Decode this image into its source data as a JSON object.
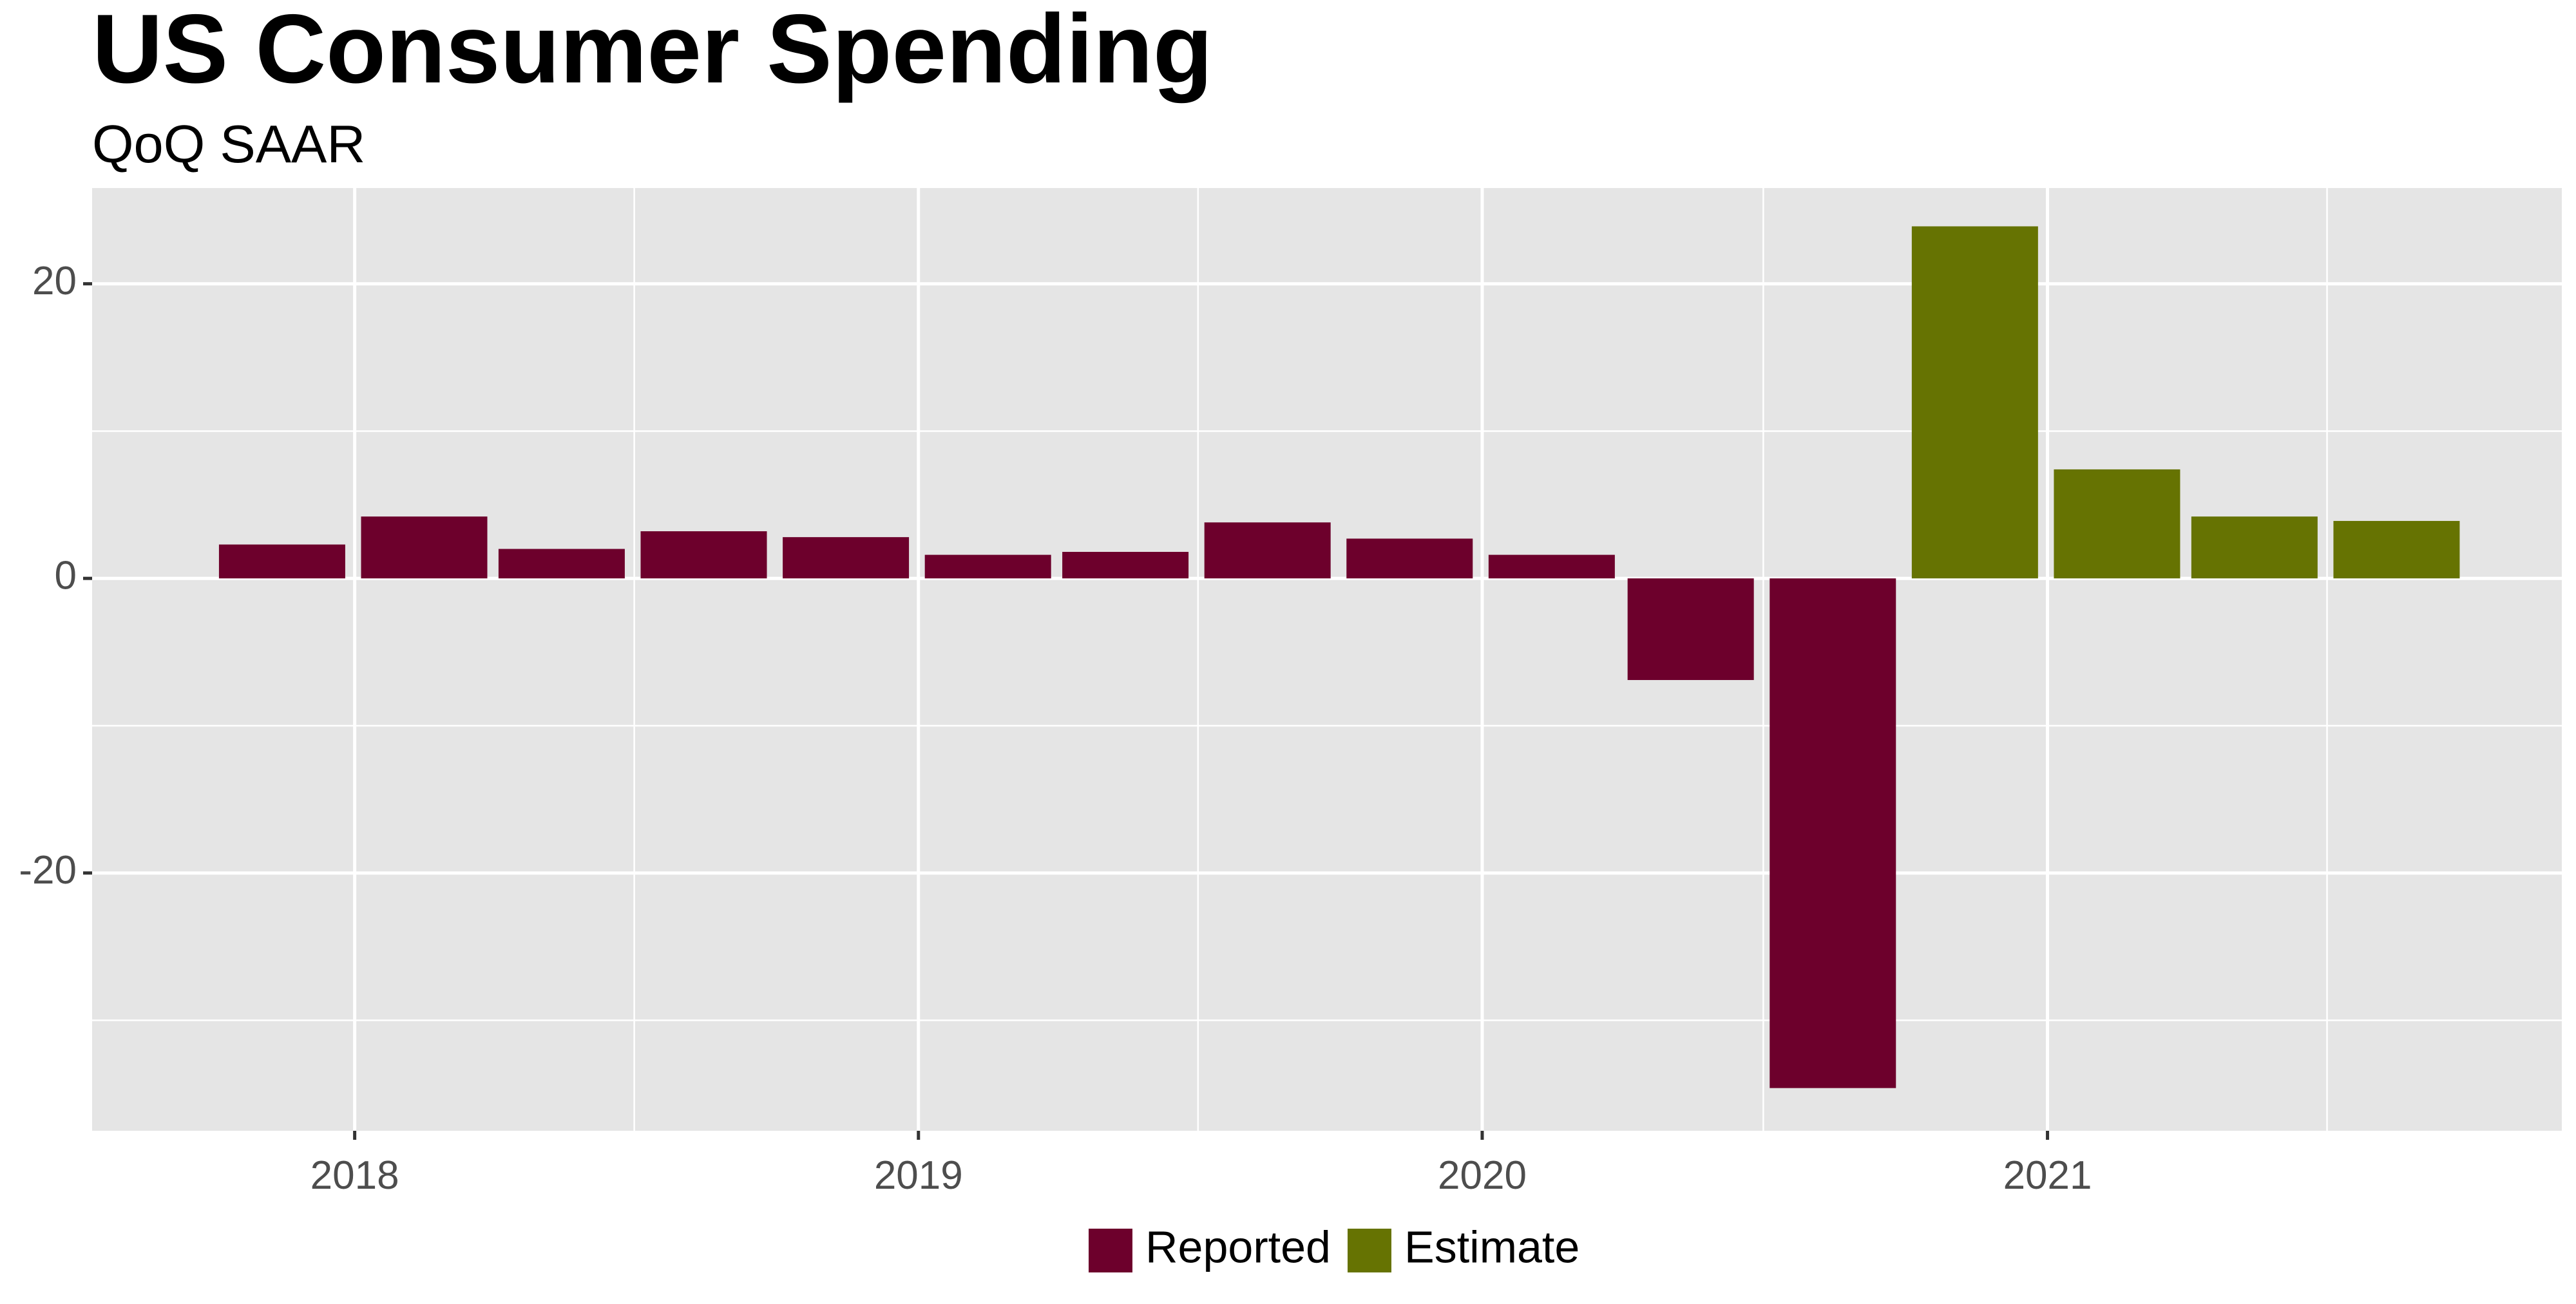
{
  "chart_data": {
    "type": "bar",
    "title": "US Consumer Spending",
    "subtitle": "QoQ SAAR",
    "xlabel": "",
    "ylabel": "",
    "x_domain": [
      "2017-07-15",
      "2021-11-30"
    ],
    "ylim": [
      -37.5,
      26.5
    ],
    "y_grid_major": [
      -20,
      0,
      20
    ],
    "y_grid_minor": [
      -30,
      -10,
      10
    ],
    "x_ticks": [
      "2018",
      "2019",
      "2020",
      "2021"
    ],
    "x_tick_dates": [
      "2018-01-01",
      "2019-01-01",
      "2020-01-01",
      "2021-01-01"
    ],
    "x_minor_dates": [
      "2017-07-01",
      "2018-07-01",
      "2019-07-01",
      "2020-07-01",
      "2021-07-01"
    ],
    "y_ticks": [
      "-20",
      "0",
      "20"
    ],
    "grid": true,
    "legend_position": "bottom",
    "series": [
      {
        "name": "Reported",
        "color": "#6d002c",
        "points": [
          {
            "x": "2017-11-15",
            "y": 2.3
          },
          {
            "x": "2018-02-15",
            "y": 4.2
          },
          {
            "x": "2018-05-15",
            "y": 2.0
          },
          {
            "x": "2018-08-15",
            "y": 3.2
          },
          {
            "x": "2018-11-15",
            "y": 2.8
          },
          {
            "x": "2019-02-15",
            "y": 1.6
          },
          {
            "x": "2019-05-15",
            "y": 1.8
          },
          {
            "x": "2019-08-15",
            "y": 3.8
          },
          {
            "x": "2019-11-15",
            "y": 2.7
          },
          {
            "x": "2020-02-15",
            "y": 1.6
          },
          {
            "x": "2020-05-15",
            "y": -6.9
          },
          {
            "x": "2020-08-15",
            "y": -34.6
          }
        ]
      },
      {
        "name": "Estimate",
        "color": "#667302",
        "points": [
          {
            "x": "2020-11-15",
            "y": 23.9
          },
          {
            "x": "2021-02-15",
            "y": 7.4
          },
          {
            "x": "2021-05-15",
            "y": 4.2
          },
          {
            "x": "2021-08-15",
            "y": 3.9
          }
        ]
      }
    ]
  }
}
